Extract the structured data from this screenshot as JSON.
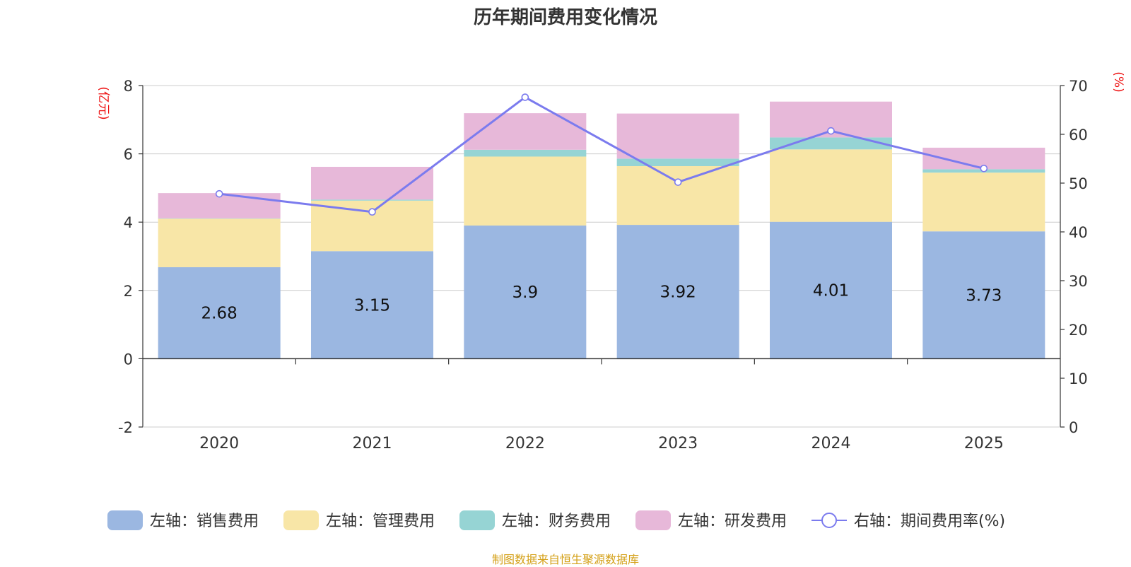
{
  "chart_data": {
    "type": "bar",
    "title": "历年期间费用变化情况",
    "categories": [
      "2020",
      "2021",
      "2022",
      "2023",
      "2024",
      "2025"
    ],
    "left_axis": {
      "unit_label": "(亿元)",
      "ylim": [
        -2,
        8
      ],
      "ticks": [
        -2,
        0,
        2,
        4,
        6,
        8
      ]
    },
    "right_axis": {
      "unit_label": "(%)",
      "ylim": [
        0,
        70
      ],
      "ticks": [
        0,
        10,
        20,
        30,
        40,
        50,
        60,
        70
      ]
    },
    "series": [
      {
        "name": "左轴：销售费用",
        "axis": "left",
        "type": "bar",
        "stack": "fee",
        "color": "#9bb7e1",
        "values": [
          2.68,
          3.15,
          3.9,
          3.92,
          4.01,
          3.73
        ],
        "show_labels": true
      },
      {
        "name": "左轴：管理费用",
        "axis": "left",
        "type": "bar",
        "stack": "fee",
        "color": "#f8e6a7",
        "values": [
          1.42,
          1.48,
          2.02,
          1.72,
          2.12,
          1.72
        ],
        "show_labels": false
      },
      {
        "name": "左轴：财务费用",
        "axis": "left",
        "type": "bar",
        "stack": "fee",
        "color": "#96d4d4",
        "values": [
          0.01,
          0.03,
          0.2,
          0.22,
          0.35,
          0.1
        ],
        "show_labels": false
      },
      {
        "name": "左轴：研发费用",
        "axis": "left",
        "type": "bar",
        "stack": "fee",
        "color": "#e7b8d9",
        "values": [
          0.74,
          0.96,
          1.07,
          1.32,
          1.05,
          0.63
        ],
        "show_labels": false
      },
      {
        "name": "右轴：期间费用率(%)",
        "axis": "right",
        "type": "line",
        "color": "#7b7bee",
        "values": [
          47.8,
          44.1,
          67.6,
          50.2,
          60.7,
          53.0
        ],
        "show_labels": false
      }
    ],
    "colors": {
      "axis_unit": "#ee1111",
      "axis_text": "#333333",
      "grid": "#cccccc",
      "source": "#d4a017"
    }
  },
  "source_note": "制图数据来自恒生聚源数据库"
}
